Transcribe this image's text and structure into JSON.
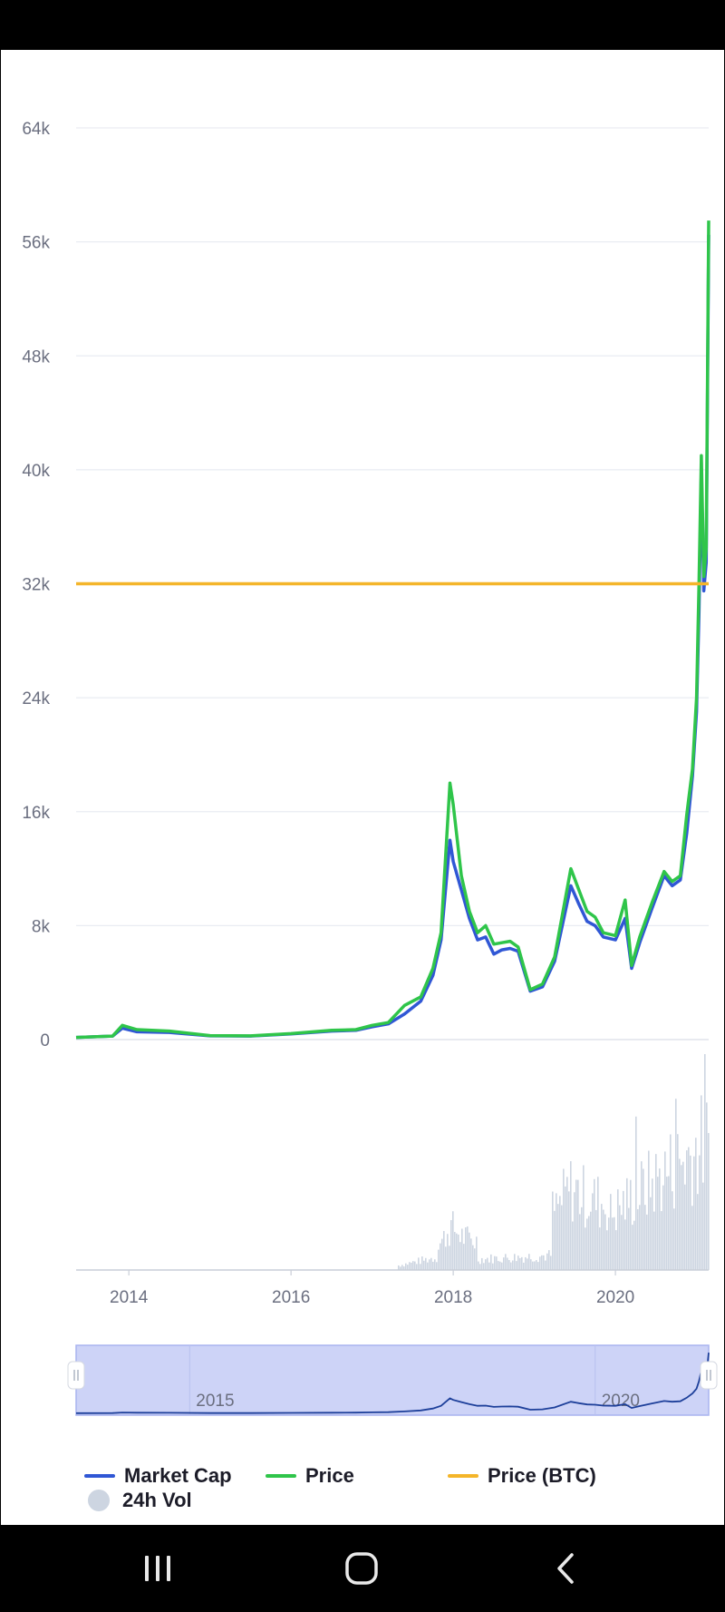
{
  "chart_data": {
    "type": "line",
    "y_ticks": [
      "64k",
      "56k",
      "48k",
      "40k",
      "32k",
      "24k",
      "16k",
      "8k",
      "0"
    ],
    "x_ticks": [
      "2014",
      "2016",
      "2018",
      "2020"
    ],
    "navigator_ticks": [
      "2015",
      "2020"
    ],
    "ylim": [
      0,
      64000
    ],
    "xlim": [
      2013.35,
      2021.15
    ],
    "grid": true,
    "legend_position": "bottom",
    "series": [
      {
        "name": "Market Cap",
        "color": "#3057d5",
        "x": [
          2013.35,
          2013.8,
          2013.92,
          2014.1,
          2014.5,
          2015.0,
          2015.5,
          2016.0,
          2016.5,
          2016.8,
          2017.0,
          2017.2,
          2017.4,
          2017.6,
          2017.75,
          2017.85,
          2017.96,
          2018.0,
          2018.1,
          2018.2,
          2018.3,
          2018.4,
          2018.5,
          2018.6,
          2018.7,
          2018.8,
          2018.95,
          2019.1,
          2019.25,
          2019.45,
          2019.55,
          2019.65,
          2019.75,
          2019.85,
          2020.0,
          2020.12,
          2020.2,
          2020.3,
          2020.45,
          2020.6,
          2020.7,
          2020.8,
          2020.88,
          2020.95,
          2021.0,
          2021.03,
          2021.06,
          2021.09,
          2021.12,
          2021.15
        ],
        "y": [
          150,
          250,
          800,
          550,
          500,
          260,
          250,
          400,
          600,
          650,
          900,
          1100,
          1800,
          2700,
          4500,
          7000,
          14000,
          12500,
          10500,
          8500,
          7000,
          7200,
          6000,
          6300,
          6400,
          6200,
          3400,
          3700,
          5500,
          10800,
          9500,
          8300,
          8000,
          7200,
          7000,
          8500,
          5000,
          6800,
          9200,
          11500,
          10800,
          11200,
          14500,
          18500,
          23000,
          30000,
          40000,
          31500,
          33500,
          56500
        ]
      },
      {
        "name": "Price",
        "color": "#2fc54a",
        "x": [
          2013.35,
          2013.8,
          2013.92,
          2014.1,
          2014.5,
          2015.0,
          2015.5,
          2016.0,
          2016.5,
          2016.8,
          2017.0,
          2017.2,
          2017.4,
          2017.6,
          2017.75,
          2017.85,
          2017.96,
          2018.0,
          2018.1,
          2018.2,
          2018.3,
          2018.4,
          2018.5,
          2018.6,
          2018.7,
          2018.8,
          2018.95,
          2019.1,
          2019.25,
          2019.45,
          2019.55,
          2019.65,
          2019.75,
          2019.85,
          2020.0,
          2020.12,
          2020.2,
          2020.3,
          2020.45,
          2020.6,
          2020.7,
          2020.8,
          2020.88,
          2020.95,
          2021.0,
          2021.03,
          2021.06,
          2021.09,
          2021.12,
          2021.15
        ],
        "y": [
          150,
          250,
          1000,
          700,
          600,
          280,
          260,
          420,
          650,
          700,
          1000,
          1200,
          2400,
          3000,
          5000,
          7500,
          18000,
          16500,
          11500,
          9000,
          7500,
          8000,
          6700,
          6800,
          6900,
          6500,
          3500,
          3900,
          5800,
          12000,
          10500,
          9000,
          8600,
          7500,
          7300,
          9800,
          5200,
          7200,
          9600,
          11800,
          11100,
          11500,
          15800,
          19000,
          24000,
          32000,
          41000,
          32500,
          34500,
          57500
        ]
      },
      {
        "name": "Price (BTC)",
        "color": "#f4b52a",
        "x": [
          2013.35,
          2021.15
        ],
        "y": [
          32000,
          32000
        ]
      }
    ],
    "volume": {
      "name": "24h Vol",
      "color": "#cdd5e1"
    }
  },
  "legend": {
    "market_cap": "Market Cap",
    "price": "Price",
    "price_btc": "Price (BTC)",
    "vol": "24h Vol"
  }
}
